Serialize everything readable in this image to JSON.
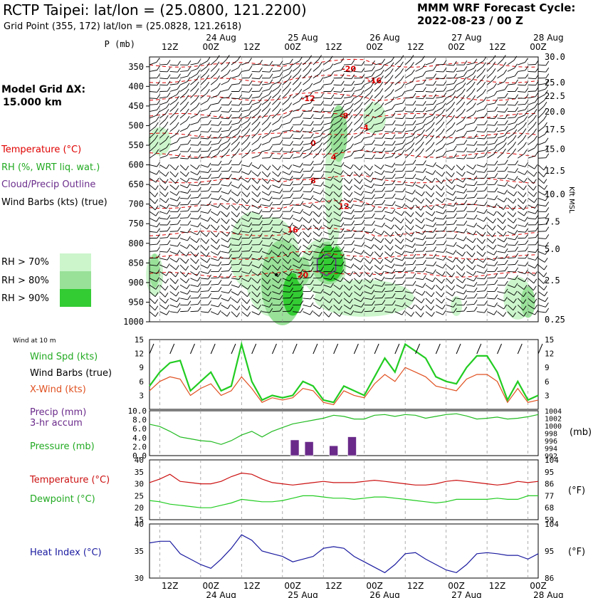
{
  "header": {
    "title": "RCTP Taipei:  lat/lon = (25.0800, 121.2200)",
    "subtitle": "Grid Point (355, 172) lat/lon = (25.0828, 121.2618)",
    "cycle_line1": "MMM WRF Forecast Cycle:",
    "cycle_line2": "2022-08-23 / 00  Z",
    "grid_line1": "Model Grid ΔX:",
    "grid_line2": "15.000 km"
  },
  "legend": {
    "temperature": "Temperature (°C)",
    "rh": "RH (%, WRT liq. wat.)",
    "cloud": "Cloud/Precip Outline",
    "wind": "Wind Barbs (kts) (true)",
    "rh70": "RH > 70%",
    "rh80": "RH > 80%",
    "rh90": "RH > 90%",
    "wind10": "Wind at 10 m",
    "wind_spd": "Wind Spd (kts)",
    "wind_barbs": "Wind Barbs (true)",
    "xwind": "X-Wind (kts)",
    "precip": "Precip (mm)",
    "precip2": "3-hr accum",
    "pressure": "Pressure (mb)",
    "temp": "Temperature (°C)",
    "dew": "Dewpoint (°C)",
    "heat": "Heat Index (°C)",
    "kft": "Kft MSL",
    "mb_unit": "(mb)",
    "f_unit": "(°F)"
  },
  "colors": {
    "temperature": "#e00000",
    "rh70": "#ccf5cc",
    "rh80": "#99e199",
    "rh90": "#33cc33",
    "cloud": "#6b2e8c",
    "wind_spd": "#22cc22",
    "xwind": "#e05020",
    "precip": "#6a2a8a",
    "pressure": "#22bb22",
    "temp": "#cc1111",
    "dew": "#22cc22",
    "heat": "#1a1aa0"
  },
  "time_axis": {
    "top_labels": [
      "12Z",
      "00Z",
      "12Z",
      "00Z",
      "12Z",
      "00Z",
      "12Z",
      "00Z",
      "12Z",
      "00Z"
    ],
    "dates": [
      "24 Aug",
      "25 Aug",
      "26 Aug",
      "27 Aug",
      "28 Aug"
    ],
    "pressure_header": "P (mb)"
  },
  "chart_data": [
    {
      "type": "heatmap",
      "name": "cross-section",
      "y_left_ticks": [
        "350",
        "400",
        "450",
        "500",
        "550",
        "600",
        "650",
        "700",
        "750",
        "800",
        "850",
        "900",
        "950",
        "1000"
      ],
      "y_right_ticks": [
        "30.0",
        "25.0",
        "22.5",
        "20.0",
        "17.5",
        "15.0",
        "12.5",
        "10.0",
        "7.5",
        "5.0",
        "2.5",
        "0.25"
      ],
      "isotherm_labels": [
        "-20",
        "-16",
        "-12",
        "-8",
        "-4",
        "0",
        "4",
        "8",
        "12",
        "16",
        "20"
      ]
    },
    {
      "type": "line",
      "name": "10m wind",
      "ylim": [
        0,
        15
      ],
      "y_ticks": [
        "15",
        "12",
        "9",
        "6",
        "3"
      ],
      "series": [
        {
          "name": "Wind Spd (kts)",
          "values": [
            5,
            8,
            10,
            10.5,
            4,
            6,
            8,
            4,
            5,
            14,
            6,
            2,
            3,
            2.5,
            3,
            6,
            5,
            2,
            1.5,
            5,
            4,
            3,
            7,
            11,
            8,
            14,
            12.5,
            11,
            7,
            6,
            5.5,
            9,
            11.5,
            11.5,
            8,
            2,
            6,
            2,
            3
          ]
        },
        {
          "name": "X-Wind (kts)",
          "values": [
            4,
            6,
            7,
            6.5,
            3,
            4.5,
            5.5,
            3,
            4,
            7,
            4.5,
            1.5,
            2.5,
            2,
            2.5,
            4.5,
            4,
            1.5,
            1,
            4,
            3,
            2.5,
            5.5,
            7.5,
            6,
            9,
            8,
            7,
            5,
            4.5,
            4,
            6.5,
            7.5,
            7.5,
            6,
            1.5,
            4.5,
            1.5,
            2
          ]
        }
      ]
    },
    {
      "type": "bar",
      "name": "precip",
      "ylim": [
        0,
        10
      ],
      "y_ticks": [
        "10.0",
        "8.0",
        "6.0",
        "4.0",
        "2.0",
        "0.0"
      ],
      "y_right_ticks": [
        "1004",
        "1002",
        "1000",
        "998",
        "996",
        "994",
        "992"
      ],
      "x_index": [
        14.2,
        15.6,
        18.0,
        19.8
      ],
      "values": [
        3.5,
        3.1,
        2.2,
        4.2
      ],
      "pressure": [
        1000.4,
        999.8,
        998.5,
        997.0,
        996.5,
        996.0,
        995.8,
        995.0,
        996.0,
        997.5,
        998.5,
        997.0,
        998.5,
        999.5,
        1000.5,
        1001.0,
        1001.5,
        1002.0,
        1002.8,
        1002.5,
        1001.8,
        1001.8,
        1002.8,
        1003.0,
        1002.5,
        1003.0,
        1002.8,
        1002.0,
        1002.5,
        1003.0,
        1003.2,
        1002.6,
        1001.8,
        1002.0,
        1002.3,
        1001.8,
        1002.0,
        1002.4,
        1003.0
      ]
    },
    {
      "type": "line",
      "name": "temperature",
      "ylim": [
        15,
        40
      ],
      "y_ticks": [
        "40",
        "35",
        "30",
        "25",
        "20",
        "15"
      ],
      "y_right_ticks": [
        "104",
        "95",
        "86",
        "77",
        "68",
        "59"
      ],
      "series": [
        {
          "name": "Temperature (°C)",
          "values": [
            30.5,
            32,
            34,
            31,
            30.5,
            30,
            30,
            31,
            33,
            34.5,
            34,
            32,
            30.5,
            30,
            29.5,
            30,
            30.5,
            31,
            30.5,
            30.5,
            30.5,
            31,
            31.5,
            31,
            30.5,
            30,
            29.5,
            29.5,
            30,
            31,
            31.5,
            31,
            30.5,
            30,
            29.5,
            30,
            31,
            30.5,
            31
          ]
        },
        {
          "name": "Dewpoint (°C)",
          "values": [
            23,
            22.5,
            21.5,
            21,
            20.5,
            20,
            20,
            21,
            22,
            23.5,
            23,
            22.5,
            22.5,
            23,
            24,
            25,
            25,
            24.5,
            24,
            24,
            23.5,
            24,
            24.5,
            24.5,
            24,
            23.5,
            23,
            22.5,
            22,
            22.5,
            23.5,
            23.5,
            23.5,
            23.5,
            24,
            23.5,
            23.5,
            25,
            25
          ]
        }
      ]
    },
    {
      "type": "line",
      "name": "heat index",
      "ylim": [
        30,
        40
      ],
      "y_ticks": [
        "40",
        "35",
        "30"
      ],
      "y_right_ticks": [
        "104",
        "95",
        "86"
      ],
      "series": [
        {
          "name": "Heat Index (°C)",
          "values": [
            36.5,
            36.8,
            36.8,
            34.5,
            33.5,
            32.5,
            31.8,
            33.5,
            35.5,
            38,
            37,
            35,
            34.5,
            34,
            33,
            33.5,
            34,
            35.5,
            35.8,
            35.5,
            34,
            33,
            32,
            31,
            32.5,
            34.5,
            34.7,
            33.5,
            32.5,
            31.5,
            31,
            32.5,
            34.5,
            34.7,
            34.5,
            34.2,
            34.2,
            33.5,
            34.5
          ]
        }
      ]
    }
  ]
}
